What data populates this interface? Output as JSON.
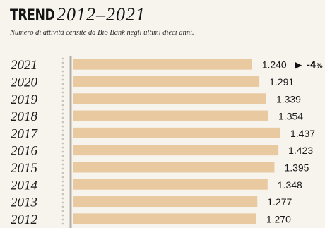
{
  "header": {
    "title_bold": "TREND",
    "title_years": "2012–2021",
    "subtitle": "Numero di attività censite da Bio Bank negli ultimi dieci anni."
  },
  "chart_data": {
    "type": "bar",
    "orientation": "horizontal",
    "categories": [
      "2021",
      "2020",
      "2019",
      "2018",
      "2017",
      "2016",
      "2015",
      "2014",
      "2013",
      "2012"
    ],
    "values": [
      1240,
      1291,
      1339,
      1354,
      1437,
      1423,
      1395,
      1348,
      1277,
      1270
    ],
    "value_labels": [
      "1.240",
      "1.291",
      "1.339",
      "1.354",
      "1.437",
      "1.423",
      "1.395",
      "1.348",
      "1.277",
      "1.270"
    ],
    "annotation": {
      "category": "2021",
      "marker": "▶",
      "text": "-4",
      "unit": "%"
    },
    "colors": {
      "bar": "#e8c9a0",
      "axis": "#b3aea6",
      "background": "#f7f4ee"
    },
    "xlim": [
      0,
      1437
    ]
  }
}
